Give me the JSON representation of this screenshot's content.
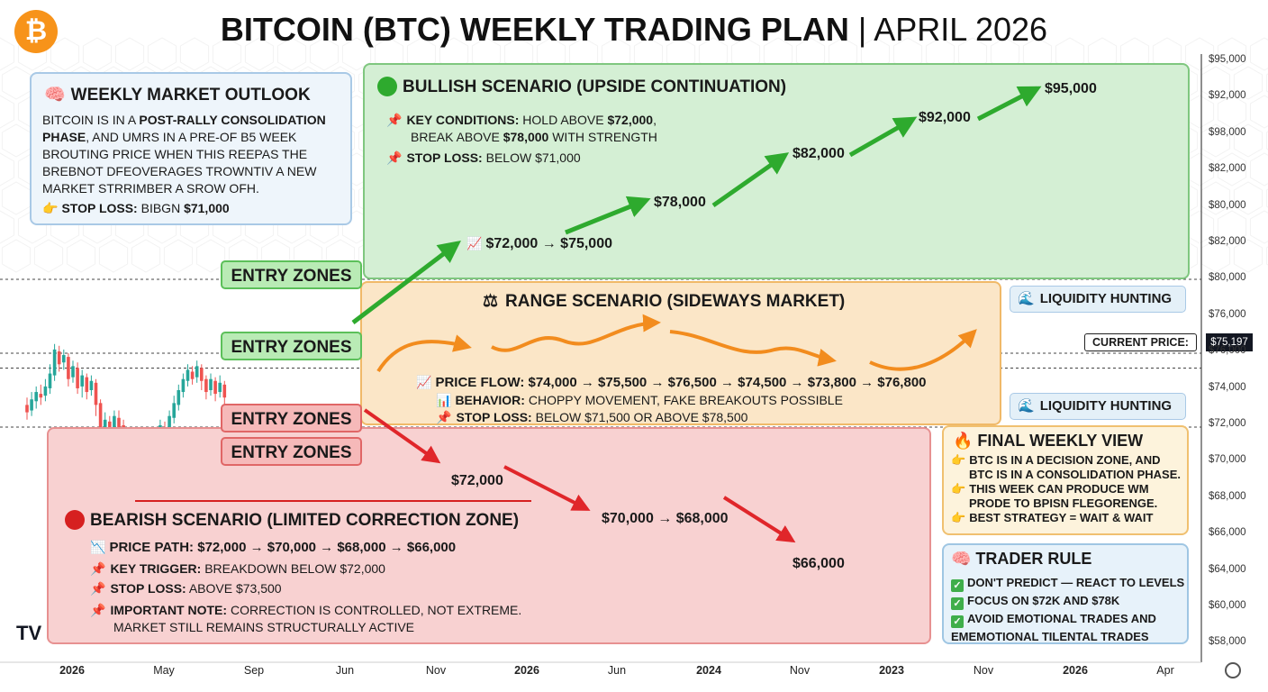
{
  "header": {
    "title_bold": "BITCOIN (BTC) WEEKLY TRADING PLAN",
    "title_sep": " | ",
    "title_light": "APRIL 2026",
    "logo_symbol": "₿"
  },
  "colors": {
    "bull_fill": "#d4efd4",
    "bull_arrow": "#2eaa2e",
    "range_fill": "#fbe6c7",
    "range_arrow": "#f28c1e",
    "bear_fill": "#f8d1d1",
    "bear_arrow": "#e0262a",
    "btc_orange": "#f7931a"
  },
  "outlook": {
    "title": "WEEKLY MARKET OUTLOOK",
    "icon": "brain-icon",
    "line1_a": "BITCOIN IS IN A ",
    "line1_b": "POST-RALLY CONSOLIDATION",
    "line2_a": "PHASE",
    "line2_b": ", AND UMRS IN A PRE-OF B5 WEEK",
    "line3": "BROUTING PRICE WHEN THIS REEPAS THE",
    "line4": "BREBNOT DFEOVERAGES TROWNTIV A NEW",
    "line5": "MARKET STRRIMBER A SROW OFH.",
    "stop_label": "STOP LOSS:",
    "stop_value": " BIBGN ",
    "stop_price": "$71,000"
  },
  "bull": {
    "title": "BULLISH SCENARIO (UPSIDE CONTINUATION)",
    "key_label": "KEY CONDITIONS:",
    "key_text_a": " HOLD ABOVE ",
    "key_price_a": "$72,000",
    "key_text_b": ",",
    "key_line2_a": "BREAK ABOVE ",
    "key_price_b": "$78,000",
    "key_line2_b": " WITH STRENGTH",
    "stop_label": "STOP LOSS:",
    "stop_text": " BELOW $71,000",
    "targets": [
      "$72,000 → $75,000",
      "$78,000",
      "$82,000",
      "$92,000",
      "$95,000"
    ]
  },
  "range": {
    "title": "RANGE SCENARIO (SIDEWAYS MARKET)",
    "flow_label": "PRICE FLOW:",
    "flow_text": " $74,000 → $75,500 → $76,500 → $74,500 → $73,800 → $76,800",
    "behavior_label": "BEHAVIOR:",
    "behavior_text": " CHOPPY MOVEMENT, FAKE BREAKOUTS POSSIBLE",
    "stop_label": "STOP LOSS:",
    "stop_text": " BELOW $71,500 OR ABOVE $78,500"
  },
  "bear": {
    "title": "BEARISH SCENARIO (LIMITED CORRECTION ZONE)",
    "path_label": "PRICE PATH:",
    "path_text": " $72,000 → $70,000 → $68,000 → $66,000",
    "trigger_label": "KEY TRIGGER:",
    "trigger_text": " BREAKDOWN BELOW $72,000",
    "stop_label": "STOP LOSS:",
    "stop_text": " ABOVE $73,500",
    "note_label": "IMPORTANT NOTE:",
    "note_text": " CORRECTION IS CONTROLLED, NOT EXTREME.",
    "note_line2": "MARKET STILL REMAINS STRUCTURALLY ACTIVE",
    "targets": [
      "$72,000",
      "$70,000 → $68,000",
      "$66,000"
    ]
  },
  "entry_zones": [
    "ENTRY ZONES",
    "ENTRY ZONES",
    "ENTRY ZONES",
    "ENTRY ZONES"
  ],
  "liquidity": [
    "LIQUIDITY HUNTING",
    "LIQUIDITY HUNTING"
  ],
  "final_view": {
    "title": "FINAL WEEKLY VIEW",
    "b1_l1": "BTC IS IN A DECISION ZONE, AND",
    "b1_l2": "BTC IS IN A CONSOLIDATION PHASE.",
    "b2_l1": "THIS WEEK CAN PRODUCE WM",
    "b2_l2": "PRODE TO BPISN FLEGORENGE.",
    "b3": "BEST STRATEGY = WAIT & WAIT"
  },
  "trader_rule": {
    "title": "TRADER RULE",
    "r1": "DON'T PREDICT — REACT TO LEVELS",
    "r2": "FOCUS ON $72K AND $78K",
    "r3_l1": "AVOID EMOTIONAL TRADES AND",
    "r3_l2": "EMEMOTIONAL TILENTAL TRADES"
  },
  "current_price": {
    "label": "CURRENT PRICE:",
    "value": "$75,197"
  },
  "chart_data": {
    "type": "candlestick",
    "y_axis_labels": [
      "$95,000",
      "$92,000",
      "$98,000",
      "$82,000",
      "$80,000",
      "$82,000",
      "$80,000",
      "$76,000",
      "$76,000",
      "$74,000",
      "$72,000",
      "$70,000",
      "$68,000",
      "$66,000",
      "$64,000",
      "$60,000",
      "$58,000"
    ],
    "x_axis_labels": [
      "2026",
      "May",
      "Sep",
      "Jun",
      "Nov",
      "2026",
      "Jun",
      "2024",
      "Nov",
      "2023",
      "Nov",
      "2026",
      "Apr"
    ],
    "reference_lines": [
      80000,
      76000,
      75197,
      72000
    ],
    "candles": [
      {
        "o": 73.2,
        "c": 72.8,
        "h": 73.6,
        "l": 72.4
      },
      {
        "o": 72.9,
        "c": 73.5,
        "h": 73.9,
        "l": 72.6
      },
      {
        "o": 73.4,
        "c": 73.9,
        "h": 74.2,
        "l": 73.0
      },
      {
        "o": 73.8,
        "c": 73.6,
        "h": 74.3,
        "l": 73.2
      },
      {
        "o": 73.7,
        "c": 74.2,
        "h": 74.6,
        "l": 73.4
      },
      {
        "o": 74.1,
        "c": 74.9,
        "h": 75.4,
        "l": 73.8
      },
      {
        "o": 74.8,
        "c": 76.2,
        "h": 76.5,
        "l": 74.5
      },
      {
        "o": 76.1,
        "c": 75.4,
        "h": 76.4,
        "l": 75.0
      },
      {
        "o": 75.5,
        "c": 75.9,
        "h": 76.2,
        "l": 75.1
      },
      {
        "o": 75.8,
        "c": 74.6,
        "h": 76.0,
        "l": 74.2
      },
      {
        "o": 74.7,
        "c": 75.3,
        "h": 75.6,
        "l": 74.4
      },
      {
        "o": 75.2,
        "c": 74.1,
        "h": 75.5,
        "l": 73.8
      },
      {
        "o": 74.2,
        "c": 74.8,
        "h": 75.1,
        "l": 73.6
      },
      {
        "o": 74.7,
        "c": 73.9,
        "h": 74.9,
        "l": 73.5
      },
      {
        "o": 74.0,
        "c": 74.5,
        "h": 74.8,
        "l": 73.7
      },
      {
        "o": 74.4,
        "c": 73.2,
        "h": 74.6,
        "l": 72.6
      },
      {
        "o": 73.3,
        "c": 71.6,
        "h": 73.5,
        "l": 71.1
      },
      {
        "o": 71.7,
        "c": 72.4,
        "h": 72.8,
        "l": 71.3
      },
      {
        "o": 72.3,
        "c": 71.8,
        "h": 72.6,
        "l": 71.2
      },
      {
        "o": 71.9,
        "c": 72.6,
        "h": 72.9,
        "l": 71.5
      },
      {
        "o": 72.5,
        "c": 72.0,
        "h": 72.9,
        "l": 71.7
      },
      {
        "o": 72.1,
        "c": 71.3,
        "h": 72.4,
        "l": 70.9
      },
      {
        "o": 71.4,
        "c": 70.1,
        "h": 71.6,
        "l": 69.7
      },
      {
        "o": 70.2,
        "c": 70.8,
        "h": 71.2,
        "l": 69.9
      },
      {
        "o": 70.7,
        "c": 69.6,
        "h": 70.9,
        "l": 69.2
      },
      {
        "o": 69.7,
        "c": 70.4,
        "h": 70.7,
        "l": 69.1
      },
      {
        "o": 70.3,
        "c": 71.1,
        "h": 71.4,
        "l": 70.0
      },
      {
        "o": 71.0,
        "c": 70.5,
        "h": 71.3,
        "l": 70.1
      },
      {
        "o": 70.6,
        "c": 71.5,
        "h": 71.8,
        "l": 70.3
      },
      {
        "o": 71.4,
        "c": 72.1,
        "h": 72.4,
        "l": 71.1
      },
      {
        "o": 72.0,
        "c": 71.6,
        "h": 72.3,
        "l": 71.2
      },
      {
        "o": 71.7,
        "c": 72.6,
        "h": 72.9,
        "l": 71.4
      },
      {
        "o": 72.5,
        "c": 73.3,
        "h": 73.7,
        "l": 72.2
      },
      {
        "o": 73.2,
        "c": 74.0,
        "h": 74.3,
        "l": 72.9
      },
      {
        "o": 73.9,
        "c": 74.6,
        "h": 74.9,
        "l": 73.6
      },
      {
        "o": 74.5,
        "c": 75.1,
        "h": 75.4,
        "l": 74.2
      },
      {
        "o": 75.0,
        "c": 74.6,
        "h": 75.3,
        "l": 74.3
      },
      {
        "o": 74.7,
        "c": 75.3,
        "h": 75.6,
        "l": 74.4
      },
      {
        "o": 75.2,
        "c": 74.5,
        "h": 75.4,
        "l": 74.0
      },
      {
        "o": 74.6,
        "c": 73.9,
        "h": 74.8,
        "l": 73.5
      },
      {
        "o": 74.0,
        "c": 74.6,
        "h": 74.9,
        "l": 73.7
      },
      {
        "o": 74.5,
        "c": 73.8,
        "h": 74.7,
        "l": 73.4
      },
      {
        "o": 73.9,
        "c": 74.4,
        "h": 74.8,
        "l": 73.6
      },
      {
        "o": 74.3,
        "c": 73.6,
        "h": 74.5,
        "l": 73.2
      }
    ]
  }
}
